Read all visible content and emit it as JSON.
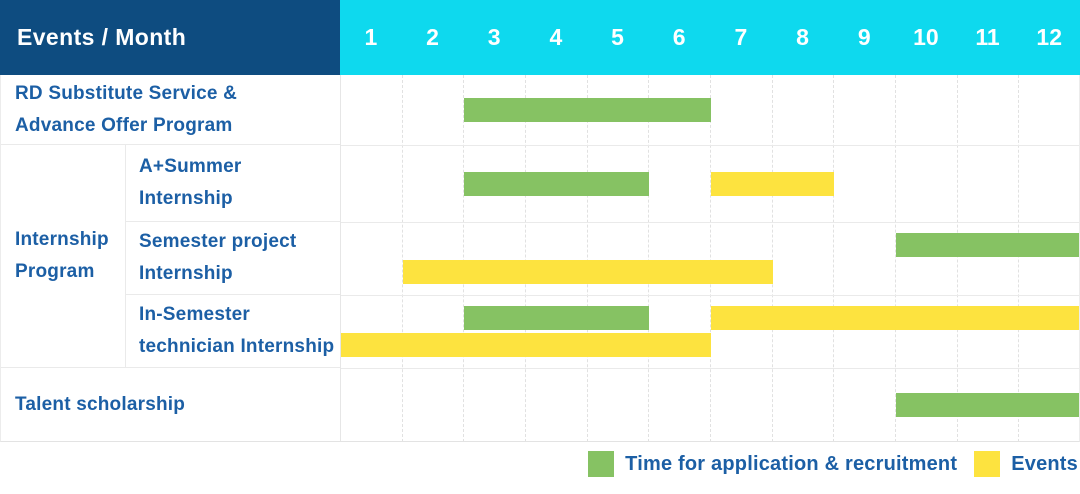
{
  "colors": {
    "header_navy": "#0E4C80",
    "header_cyan": "#0ED9EE",
    "label_blue": "#1C5FA5",
    "bar_green": "#86C263",
    "bar_yellow": "#FDE33F",
    "grid_line": "#EAEAEA"
  },
  "header": {
    "title": "Events / Month",
    "months": [
      "1",
      "2",
      "3",
      "4",
      "5",
      "6",
      "7",
      "8",
      "9",
      "10",
      "11",
      "12"
    ]
  },
  "chart_data": {
    "type": "table",
    "subtype": "gantt",
    "title": "Events / Month",
    "xlabel": "Month",
    "x_range": [
      1,
      12
    ],
    "group_label": "Internship Program",
    "group_label_lines": [
      "Internship",
      "Program"
    ],
    "rows": [
      {
        "group": null,
        "label": "RD Substitute Service & Advance Offer Program",
        "label_lines": [
          "RD Substitute Service &",
          "Advance Offer Program"
        ],
        "bars": [
          {
            "kind": "application",
            "start_month": 3,
            "end_month": 6,
            "lane": "center"
          }
        ]
      },
      {
        "group": "Internship Program",
        "label": "A+Summer Internship",
        "label_lines": [
          "A+Summer",
          "Internship"
        ],
        "bars": [
          {
            "kind": "application",
            "start_month": 3,
            "end_month": 5,
            "lane": "center"
          },
          {
            "kind": "event",
            "start_month": 7,
            "end_month": 8,
            "lane": "center"
          }
        ]
      },
      {
        "group": "Internship Program",
        "label": "Semester project Internship",
        "label_lines": [
          "Semester project",
          "Internship"
        ],
        "bars": [
          {
            "kind": "application",
            "start_month": 10,
            "end_month": 12,
            "lane": "top"
          },
          {
            "kind": "event",
            "start_month": 2,
            "end_month": 7,
            "lane": "bottom"
          }
        ]
      },
      {
        "group": "Internship Program",
        "label": "In-Semester technician Internship",
        "label_lines": [
          "In-Semester",
          "technician Internship"
        ],
        "bars": [
          {
            "kind": "application",
            "start_month": 3,
            "end_month": 5,
            "lane": "top"
          },
          {
            "kind": "event",
            "start_month": 7,
            "end_month": 12,
            "lane": "top"
          },
          {
            "kind": "event",
            "start_month": 1,
            "end_month": 6,
            "lane": "bottom"
          }
        ]
      },
      {
        "group": null,
        "label": "Talent scholarship",
        "label_lines": [
          "Talent scholarship"
        ],
        "bars": [
          {
            "kind": "application",
            "start_month": 10,
            "end_month": 12,
            "lane": "center"
          }
        ]
      }
    ]
  },
  "legend": {
    "items": [
      {
        "kind": "application",
        "label": "Time for application & recruitment",
        "color": "#86C263"
      },
      {
        "kind": "event",
        "label": "Events",
        "color": "#FDE33F"
      }
    ]
  }
}
